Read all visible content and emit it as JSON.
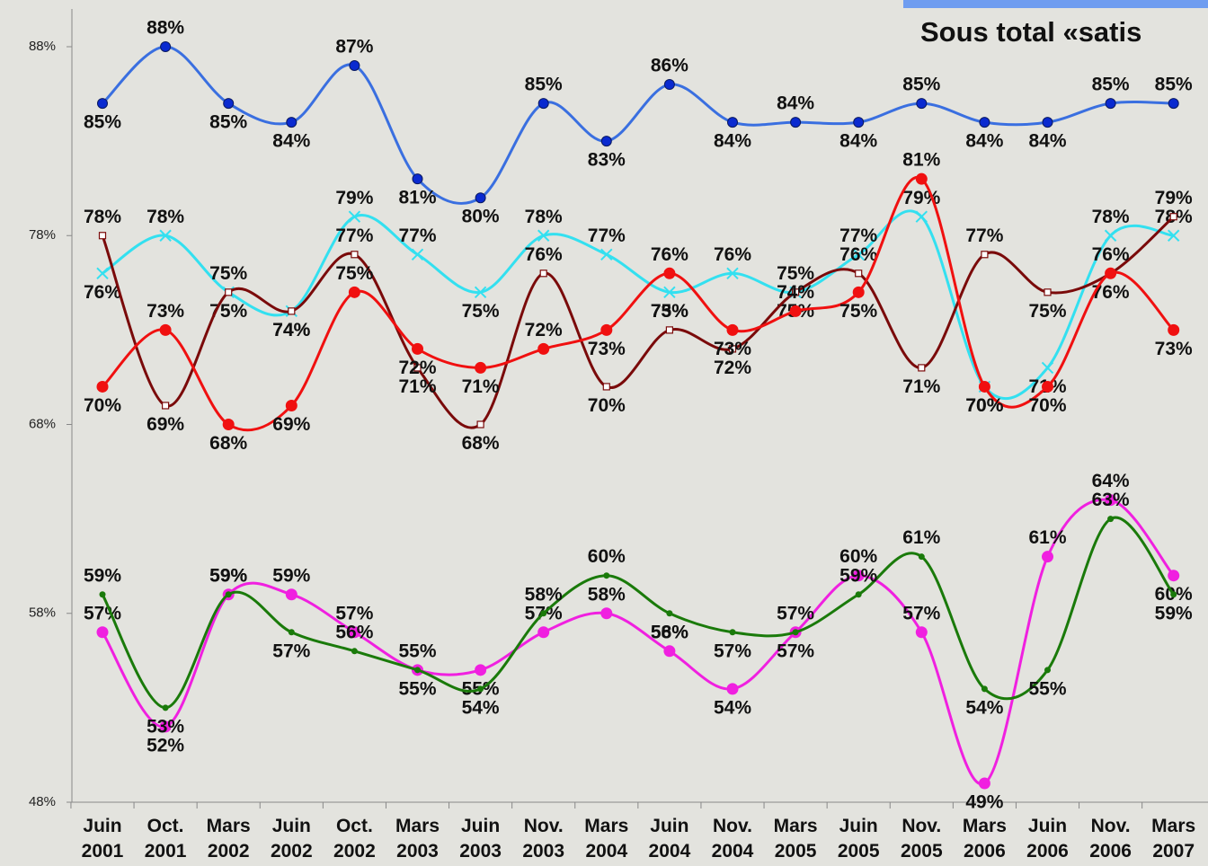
{
  "chart_data": {
    "type": "line",
    "title": "Sous total «satis",
    "categories": [
      "Juin\n2001",
      "Oct.\n2001",
      "Mars\n2002",
      "Juin\n2002",
      "Oct.\n2002",
      "Mars\n2003",
      "Juin\n2003",
      "Nov.\n2003",
      "Mars\n2004",
      "Juin\n2004",
      "Nov.\n2004",
      "Mars\n2005",
      "Juin\n2005",
      "Nov.\n2005",
      "Mars\n2006",
      "Juin\n2006",
      "Nov.\n2006",
      "Mars\n2007"
    ],
    "ylim": [
      48,
      88
    ],
    "yticks": [
      {
        "value": 48,
        "label": "48%"
      },
      {
        "value": 58,
        "label": "58%"
      },
      {
        "value": 68,
        "label": "68%"
      },
      {
        "value": 78,
        "label": "78%"
      },
      {
        "value": 88,
        "label": "88%"
      }
    ],
    "grid": false,
    "series": [
      {
        "color": "#3a6fe0",
        "marker": "circle",
        "values": [
          85,
          88,
          85,
          84,
          87,
          81,
          80,
          85,
          83,
          86,
          84,
          84,
          84,
          85,
          84,
          84,
          85,
          85
        ],
        "value_labels": [
          "85%",
          "88%",
          "85%",
          "84%",
          "87%",
          "81%",
          "80%",
          "85%",
          "83%",
          "86%",
          "84%",
          "84%",
          "84%",
          "85%",
          "84%",
          "84%",
          "85%",
          "85%"
        ]
      },
      {
        "color": "#33e0f0",
        "marker": "x",
        "values": [
          76,
          78,
          75,
          74,
          79,
          77,
          75,
          78,
          77,
          75,
          76,
          75,
          77,
          79,
          70,
          71,
          78,
          78
        ],
        "value_labels": [
          "76%",
          "78%",
          "75%",
          "74%",
          "79%",
          "77%",
          "75%",
          "78%",
          "77%",
          "75%",
          "76%",
          "75%",
          "77%",
          "79%",
          "70%",
          "71%",
          "78%",
          "78%"
        ]
      },
      {
        "color": "#7a0a0a",
        "marker": "square",
        "values": [
          78,
          69,
          75,
          74,
          77,
          71,
          68,
          76,
          70,
          73,
          72,
          75,
          76,
          71,
          77,
          75,
          76,
          79
        ],
        "value_labels": [
          "78%",
          "69%",
          "75%",
          "74%",
          "77%",
          "71%",
          "68%",
          "76%",
          "70%",
          "73%",
          "72%",
          "75%",
          "76%",
          "71%",
          "77%",
          "75%",
          "76%",
          "79%"
        ]
      },
      {
        "color": "#f01010",
        "marker": "bigcircle",
        "values": [
          70,
          73,
          68,
          69,
          75,
          72,
          71,
          72,
          73,
          76,
          73,
          74,
          75,
          81,
          70,
          70,
          76,
          73
        ],
        "value_labels": [
          "70%",
          "73%",
          "68%",
          "69%",
          "75%",
          "72%",
          "71%",
          "72%",
          "73%",
          "76%",
          "73%",
          "74%",
          "75%",
          "81%",
          "70%",
          "70%",
          "76%",
          "73%"
        ]
      },
      {
        "color": "#f020e0",
        "marker": "bigcircle",
        "values": [
          57,
          52,
          59,
          59,
          57,
          55,
          55,
          57,
          58,
          56,
          54,
          57,
          60,
          57,
          49,
          61,
          64,
          60
        ],
        "value_labels": [
          "57%",
          "52%",
          "59%",
          "59%",
          "57%",
          "55%",
          "55%",
          "57%",
          "58%",
          "56%",
          "54%",
          "57%",
          "60%",
          "57%",
          "49%",
          "61%",
          "64%",
          "60%"
        ]
      },
      {
        "color": "#1a7a0a",
        "marker": "dot",
        "values": [
          59,
          53,
          59,
          57,
          56,
          55,
          54,
          58,
          60,
          58,
          57,
          57,
          59,
          61,
          54,
          55,
          63,
          59
        ],
        "value_labels": [
          "59%",
          "53%",
          "59%",
          "57%",
          "56%",
          "55%",
          "54%",
          "58%",
          "60%",
          "58%",
          "57%",
          "57%",
          "59%",
          "61%",
          "54%",
          "55%",
          "63%",
          "59%"
        ]
      }
    ]
  }
}
